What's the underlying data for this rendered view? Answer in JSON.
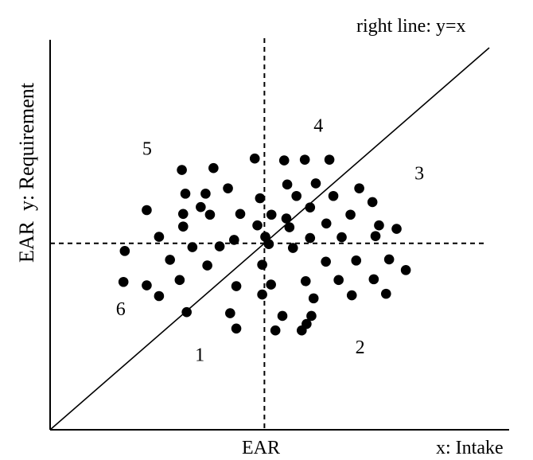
{
  "chart_data": {
    "type": "scatter",
    "title": "right line: y=x",
    "xlabel": "x: Intake",
    "ylabel": "EAR  y: Requirement",
    "x_reference_label": "EAR",
    "xlim": [
      0,
      1
    ],
    "ylim": [
      0,
      1
    ],
    "ear": 0.488,
    "grid": false,
    "reference_line": {
      "kind": "identity",
      "description": "y=x"
    },
    "region_labels": [
      {
        "text": "1",
        "x": 0.33,
        "y": 0.18
      },
      {
        "text": "2",
        "x": 0.695,
        "y": 0.2
      },
      {
        "text": "3",
        "x": 0.83,
        "y": 0.655
      },
      {
        "text": "4",
        "x": 0.6,
        "y": 0.78
      },
      {
        "text": "5",
        "x": 0.21,
        "y": 0.72
      },
      {
        "text": "6",
        "x": 0.15,
        "y": 0.3
      }
    ],
    "points": [
      [
        0.3,
        0.68
      ],
      [
        0.372,
        0.685
      ],
      [
        0.466,
        0.71
      ],
      [
        0.533,
        0.705
      ],
      [
        0.58,
        0.707
      ],
      [
        0.636,
        0.707
      ],
      [
        0.54,
        0.642
      ],
      [
        0.605,
        0.645
      ],
      [
        0.405,
        0.632
      ],
      [
        0.308,
        0.618
      ],
      [
        0.354,
        0.618
      ],
      [
        0.704,
        0.632
      ],
      [
        0.478,
        0.606
      ],
      [
        0.561,
        0.612
      ],
      [
        0.645,
        0.612
      ],
      [
        0.734,
        0.596
      ],
      [
        0.22,
        0.575
      ],
      [
        0.343,
        0.583
      ],
      [
        0.303,
        0.565
      ],
      [
        0.364,
        0.563
      ],
      [
        0.433,
        0.565
      ],
      [
        0.592,
        0.582
      ],
      [
        0.504,
        0.563
      ],
      [
        0.538,
        0.553
      ],
      [
        0.472,
        0.535
      ],
      [
        0.303,
        0.532
      ],
      [
        0.629,
        0.54
      ],
      [
        0.684,
        0.563
      ],
      [
        0.749,
        0.535
      ],
      [
        0.789,
        0.526
      ],
      [
        0.545,
        0.53
      ],
      [
        0.248,
        0.505
      ],
      [
        0.419,
        0.497
      ],
      [
        0.49,
        0.505
      ],
      [
        0.592,
        0.502
      ],
      [
        0.664,
        0.504
      ],
      [
        0.741,
        0.507
      ],
      [
        0.324,
        0.478
      ],
      [
        0.386,
        0.48
      ],
      [
        0.498,
        0.486
      ],
      [
        0.553,
        0.476
      ],
      [
        0.17,
        0.468
      ],
      [
        0.273,
        0.445
      ],
      [
        0.358,
        0.43
      ],
      [
        0.483,
        0.432
      ],
      [
        0.628,
        0.44
      ],
      [
        0.697,
        0.443
      ],
      [
        0.772,
        0.446
      ],
      [
        0.81,
        0.418
      ],
      [
        0.167,
        0.387
      ],
      [
        0.295,
        0.392
      ],
      [
        0.424,
        0.376
      ],
      [
        0.503,
        0.38
      ],
      [
        0.582,
        0.389
      ],
      [
        0.657,
        0.392
      ],
      [
        0.737,
        0.394
      ],
      [
        0.22,
        0.378
      ],
      [
        0.248,
        0.35
      ],
      [
        0.483,
        0.354
      ],
      [
        0.6,
        0.344
      ],
      [
        0.687,
        0.352
      ],
      [
        0.765,
        0.356
      ],
      [
        0.311,
        0.308
      ],
      [
        0.41,
        0.305
      ],
      [
        0.529,
        0.298
      ],
      [
        0.595,
        0.298
      ],
      [
        0.424,
        0.265
      ],
      [
        0.513,
        0.26
      ],
      [
        0.573,
        0.26
      ],
      [
        0.584,
        0.277
      ]
    ]
  }
}
